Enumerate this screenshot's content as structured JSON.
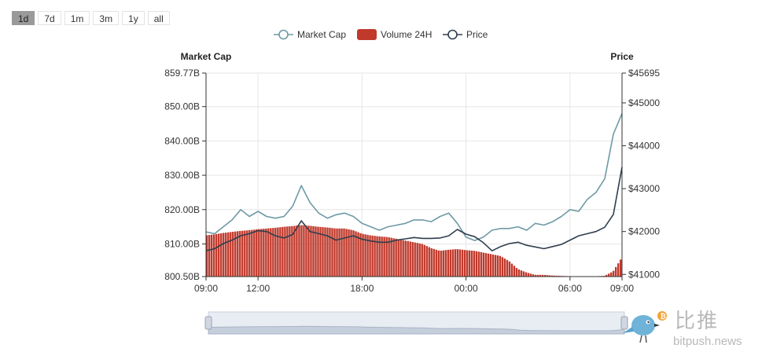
{
  "range_buttons": [
    {
      "label": "1d",
      "active": true
    },
    {
      "label": "7d",
      "active": false
    },
    {
      "label": "1m",
      "active": false
    },
    {
      "label": "3m",
      "active": false
    },
    {
      "label": "1y",
      "active": false
    },
    {
      "label": "all",
      "active": false
    }
  ],
  "watermark": {
    "cn": "比推",
    "en": "bitpush.news"
  },
  "colors": {
    "market_cap": "#6e9aa6",
    "volume": "#c0392b",
    "price": "#2f3e4e",
    "grid": "#e6e6e6"
  },
  "chart_data": {
    "type": "line",
    "legend": [
      "Market Cap",
      "Volume 24H",
      "Price"
    ],
    "legend_position": "top-center",
    "ylabel_left": "Market Cap",
    "ylabel_right": "Price",
    "x_ticks": [
      "09:00",
      "12:00",
      "18:00",
      "00:00",
      "06:00",
      "09:00"
    ],
    "x_tick_hours": [
      0,
      3,
      9,
      15,
      21,
      24
    ],
    "y_left_ticks": [
      "859.77B",
      "850.00B",
      "840.00B",
      "830.00B",
      "820.00B",
      "810.00B",
      "800.50B"
    ],
    "y_left_tick_values": [
      859.77,
      850,
      840,
      830,
      820,
      810,
      800.5
    ],
    "y_left_range": [
      800.5,
      859.77
    ],
    "y_right_ticks": [
      "$45695",
      "$45000",
      "$44000",
      "$43000",
      "$42000",
      "$41000"
    ],
    "y_right_tick_values": [
      45695,
      45000,
      44000,
      43000,
      42000,
      41000
    ],
    "y_right_range": [
      40950,
      45695
    ],
    "grid": true,
    "x_hours": [
      0,
      0.5,
      1,
      1.5,
      2,
      2.5,
      3,
      3.5,
      4,
      4.5,
      5,
      5.5,
      6,
      6.5,
      7,
      7.5,
      8,
      8.5,
      9,
      9.5,
      10,
      10.5,
      11,
      11.5,
      12,
      12.5,
      13,
      13.5,
      14,
      14.5,
      15,
      15.5,
      16,
      16.5,
      17,
      17.5,
      18,
      18.5,
      19,
      19.5,
      20,
      20.5,
      21,
      21.5,
      22,
      22.5,
      23,
      23.5,
      24
    ],
    "series": [
      {
        "name": "Market Cap",
        "axis": "left",
        "values": [
          813.5,
          813,
          815,
          817,
          820,
          818,
          819.5,
          818,
          817.5,
          818,
          821,
          827,
          822,
          819,
          817.5,
          818.5,
          819,
          818,
          816,
          815,
          814,
          815,
          815.5,
          816,
          817,
          817,
          816.5,
          818,
          819,
          816,
          812,
          811,
          812,
          814,
          814.5,
          814.5,
          815,
          814,
          816,
          815.5,
          816.5,
          818,
          820,
          819.5,
          823,
          825,
          829,
          842,
          848
        ]
      },
      {
        "name": "Volume 24H",
        "axis": "left",
        "values": [
          812.5,
          812.8,
          813.2,
          813.5,
          813.8,
          814,
          814.3,
          814.5,
          814.7,
          815,
          815.2,
          815.5,
          815.3,
          815,
          814.8,
          814.5,
          814.5,
          814,
          813,
          812.5,
          812.2,
          812,
          811.5,
          811,
          810.5,
          810,
          808.8,
          808,
          808.3,
          808.5,
          808.2,
          808,
          807.5,
          807,
          806.5,
          805,
          802.7,
          801.7,
          801,
          801,
          800.8,
          800.7,
          800.6,
          800.6,
          800.6,
          800.6,
          800.7,
          802,
          806
        ]
      },
      {
        "name": "Price",
        "axis": "right",
        "values": [
          41550,
          41600,
          41720,
          41800,
          41900,
          41950,
          42020,
          42000,
          41900,
          41850,
          41930,
          42250,
          42000,
          41950,
          41900,
          41800,
          41850,
          41900,
          41820,
          41780,
          41750,
          41750,
          41800,
          41830,
          41860,
          41840,
          41840,
          41850,
          41900,
          42050,
          41940,
          41880,
          41740,
          41550,
          41650,
          41720,
          41750,
          41680,
          41640,
          41600,
          41650,
          41700,
          41800,
          41900,
          41950,
          42000,
          42100,
          42400,
          43500
        ]
      }
    ]
  }
}
